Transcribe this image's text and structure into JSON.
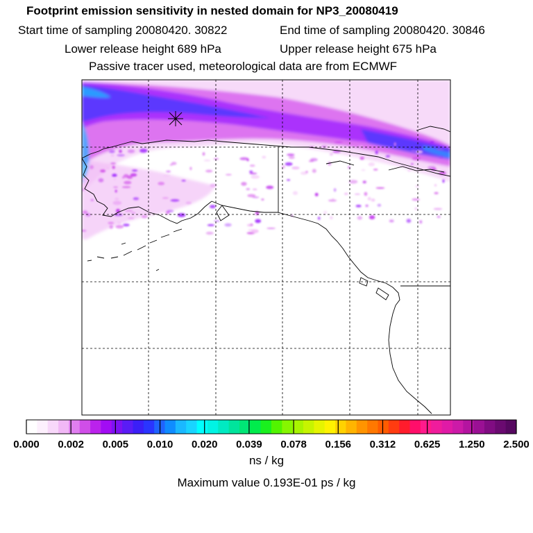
{
  "header": {
    "title": "Footprint emission sensitivity in nested domain for NP3_20080419",
    "start_time": "Start time of sampling 20080420. 30822",
    "end_time": "End time of sampling 20080420. 30846",
    "lower_height": "Lower release height  689 hPa",
    "upper_height": "Upper release height  675 hPa",
    "tracer_note": "Passive tracer used, meteorological data are from ECMWF"
  },
  "map": {
    "colors": {
      "frame": "#000000",
      "grid": "#000000",
      "coast": "#000000",
      "plume_light": "#f3c9f6",
      "plume_mid": "#dd66ee",
      "plume_dense": "#9a1cff",
      "plume_blue": "#3a3cff",
      "plume_cyan": "#20b4ff"
    },
    "release_marker": "star-marker"
  },
  "colorbar": {
    "tick_labels": [
      "0.000",
      "0.002",
      "0.005",
      "0.010",
      "0.020",
      "0.039",
      "0.078",
      "0.156",
      "0.312",
      "0.625",
      "1.250",
      "2.500"
    ],
    "swatches": [
      "#ffffff",
      "#fdf0fd",
      "#f8d8fa",
      "#f1b8f6",
      "#e07ff0",
      "#d04ee8",
      "#bb22ec",
      "#a20cf4",
      "#7d12f2",
      "#5a1cf6",
      "#3b1ff7",
      "#2a35ff",
      "#1f63ff",
      "#0f8cff",
      "#1ab8ff",
      "#19d4ff",
      "#00ffff",
      "#00f4e4",
      "#00eac2",
      "#00e49c",
      "#00e676",
      "#00ec4c",
      "#1af01e",
      "#52f400",
      "#86f600",
      "#a8f400",
      "#c7f400",
      "#e6f400",
      "#fff200",
      "#ffd200",
      "#ffb400",
      "#ff9400",
      "#ff7800",
      "#ff5c00",
      "#ff3c10",
      "#ff1c2c",
      "#ff0e6a",
      "#ff1a8c",
      "#f01c9c",
      "#e01aa6",
      "#cc1aa8",
      "#b414a0",
      "#9a1094",
      "#800c82",
      "#6a0a70",
      "#560860"
    ],
    "unit": "ns / kg",
    "maximum": "Maximum value  0.193E-01 ps / kg"
  }
}
